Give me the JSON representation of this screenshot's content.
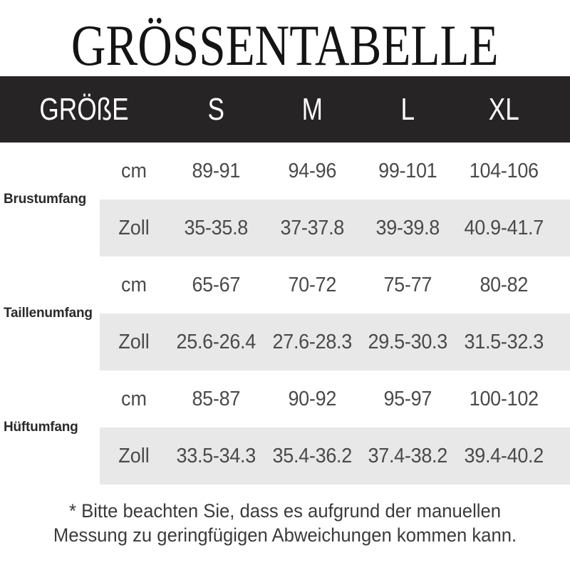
{
  "title": "GRÖSSENTABELLE",
  "table": {
    "header": {
      "label": "GRÖßE",
      "sizes": [
        "S",
        "M",
        "L",
        "XL"
      ]
    },
    "sections": [
      {
        "label": "Brustumfang",
        "rows": [
          {
            "unit": "cm",
            "values": [
              "89-91",
              "94-96",
              "99-101",
              "104-106"
            ]
          },
          {
            "unit": "Zoll",
            "values": [
              "35-35.8",
              "37-37.8",
              "39-39.8",
              "40.9-41.7"
            ]
          }
        ]
      },
      {
        "label": "Taillenumfang",
        "rows": [
          {
            "unit": "cm",
            "values": [
              "65-67",
              "70-72",
              "75-77",
              "80-82"
            ]
          },
          {
            "unit": "Zoll",
            "values": [
              "25.6-26.4",
              "27.6-28.3",
              "29.5-30.3",
              "31.5-32.3"
            ]
          }
        ]
      },
      {
        "label": "Hüftumfang",
        "rows": [
          {
            "unit": "cm",
            "values": [
              "85-87",
              "90-92",
              "95-97",
              "100-102"
            ]
          },
          {
            "unit": "Zoll",
            "values": [
              "33.5-34.3",
              "35.4-36.2",
              "37.4-38.2",
              "39.4-40.2"
            ]
          }
        ]
      }
    ]
  },
  "footnote": "* Bitte beachten Sie, dass es aufgrund der manuellen Messung zu geringfügigen Abweichungen kommen kann.",
  "colors": {
    "header_bg": "#272425",
    "header_text": "#ffffff",
    "row_alt_bg": "#e9e8e8",
    "value_text": "#4a4a4a",
    "title_text": "#141414"
  }
}
